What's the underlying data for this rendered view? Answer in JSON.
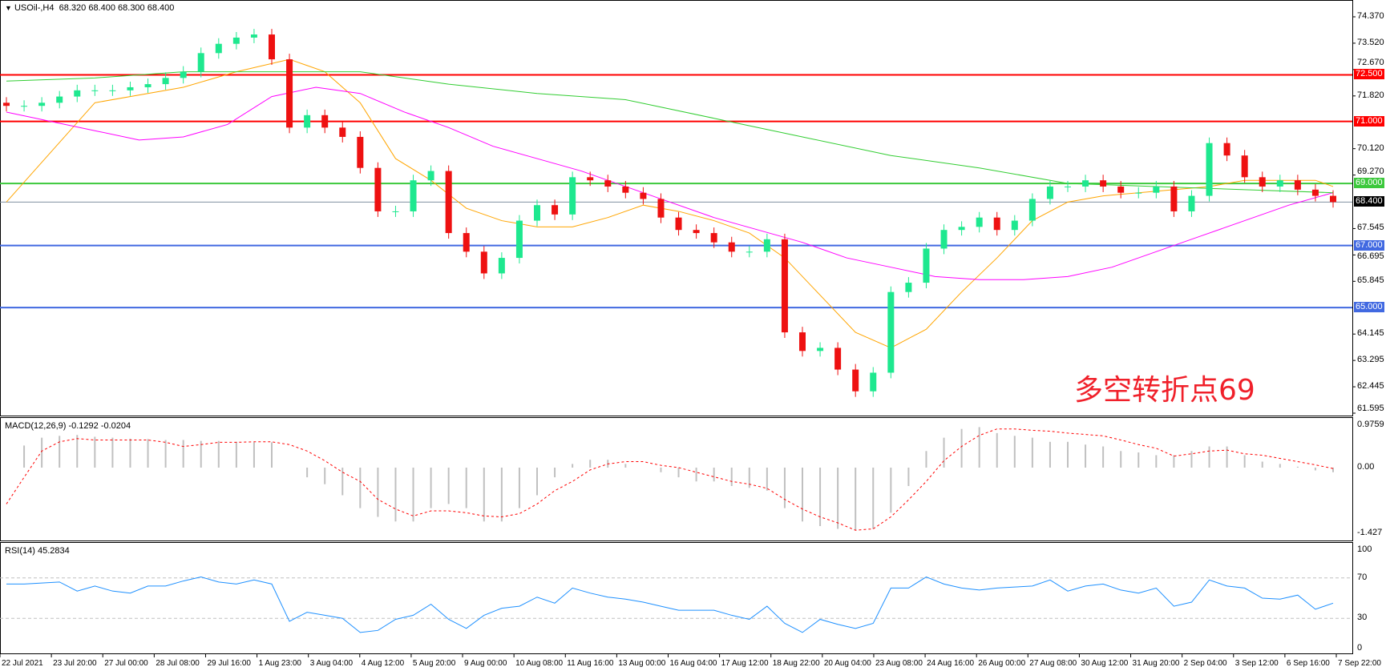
{
  "header": {
    "symbol": "USOil-,H4",
    "ohlc": "68.320 68.400 68.300 68.400",
    "arrow_icon": "triangle-down-icon"
  },
  "annotation": "多空转折点69",
  "colors": {
    "bull": "#1ee88f",
    "bear": "#ee1111",
    "ma_fast": "#ffa500",
    "ma_mid": "#ff00ff",
    "ma_slow": "#32cd32",
    "macd_hist": "#c0c0c0",
    "macd_signal": "#ff0000",
    "rsi": "#1e90ff"
  },
  "chart_data": [
    {
      "type": "candlestick",
      "title": "USOil-,H4",
      "price_axis_ticks": [
        "74.370",
        "73.520",
        "72.670",
        "71.820",
        "70.120",
        "69.270",
        "67.545",
        "66.695",
        "65.845",
        "64.145",
        "63.295",
        "62.445",
        "61.595"
      ],
      "ylim": [
        61.595,
        74.37
      ],
      "time_axis_ticks": [
        "22 Jul 2021",
        "23 Jul 20:00",
        "27 Jul 00:00",
        "28 Jul 08:00",
        "29 Jul 16:00",
        "1 Aug 23:00",
        "3 Aug 04:00",
        "4 Aug 12:00",
        "5 Aug 20:00",
        "9 Aug 00:00",
        "10 Aug 08:00",
        "11 Aug 16:00",
        "13 Aug 00:00",
        "16 Aug 04:00",
        "17 Aug 12:00",
        "18 Aug 22:00",
        "20 Aug 04:00",
        "23 Aug 08:00",
        "24 Aug 16:00",
        "26 Aug 00:00",
        "27 Aug 08:00",
        "30 Aug 12:00",
        "31 Aug 20:00",
        "2 Sep 04:00",
        "3 Sep 12:00",
        "6 Sep 16:00",
        "7 Sep 22:00"
      ],
      "closes": [
        71.5,
        71.5,
        71.6,
        71.8,
        72.0,
        72.0,
        72.0,
        72.1,
        72.2,
        72.4,
        72.6,
        73.2,
        73.5,
        73.7,
        73.8,
        73.0,
        70.8,
        71.2,
        70.8,
        70.5,
        69.5,
        68.1,
        68.1,
        69.1,
        69.4,
        67.4,
        66.8,
        66.1,
        66.6,
        67.8,
        68.3,
        68.0,
        69.2,
        69.1,
        68.9,
        68.7,
        68.5,
        67.9,
        67.5,
        67.4,
        67.1,
        66.8,
        66.8,
        67.2,
        64.2,
        63.6,
        63.7,
        63.0,
        62.3,
        62.9,
        65.5,
        65.8,
        66.9,
        67.5,
        67.6,
        67.9,
        67.5,
        67.8,
        68.5,
        68.9,
        68.9,
        69.1,
        68.9,
        68.7,
        68.7,
        68.9,
        68.1,
        68.6,
        70.3,
        69.9,
        69.2,
        68.9,
        69.1,
        68.8,
        68.6,
        68.4
      ],
      "moving_averages": [
        {
          "color": "#ffa500",
          "points": [
            [
              0,
              68.4
            ],
            [
              5,
              71.6
            ],
            [
              10,
              72.1
            ],
            [
              13,
              72.6
            ],
            [
              16,
              73.0
            ],
            [
              18,
              72.6
            ],
            [
              20,
              71.6
            ],
            [
              22,
              69.8
            ],
            [
              24,
              69.1
            ],
            [
              26,
              68.2
            ],
            [
              28,
              67.8
            ],
            [
              30,
              67.6
            ],
            [
              32,
              67.6
            ],
            [
              34,
              67.9
            ],
            [
              36,
              68.3
            ],
            [
              38,
              68.1
            ],
            [
              40,
              67.8
            ],
            [
              42,
              67.4
            ],
            [
              44,
              66.6
            ],
            [
              46,
              65.4
            ],
            [
              48,
              64.2
            ],
            [
              50,
              63.7
            ],
            [
              52,
              64.3
            ],
            [
              54,
              65.5
            ],
            [
              56,
              66.6
            ],
            [
              58,
              67.8
            ],
            [
              60,
              68.4
            ],
            [
              62,
              68.6
            ],
            [
              64,
              68.7
            ],
            [
              66,
              68.8
            ],
            [
              68,
              68.9
            ],
            [
              70,
              69.1
            ],
            [
              72,
              69.1
            ],
            [
              74,
              69.1
            ],
            [
              75,
              68.9
            ]
          ]
        },
        {
          "color": "#ff00ff",
          "points": [
            [
              0,
              71.3
            ],
            [
              5,
              70.7
            ],
            [
              7.5,
              70.4
            ],
            [
              10,
              70.5
            ],
            [
              12.5,
              70.9
            ],
            [
              15,
              71.8
            ],
            [
              17.5,
              72.1
            ],
            [
              20,
              71.9
            ],
            [
              22.5,
              71.3
            ],
            [
              25,
              70.8
            ],
            [
              27.5,
              70.2
            ],
            [
              30,
              69.8
            ],
            [
              32.5,
              69.4
            ],
            [
              35,
              68.9
            ],
            [
              37.5,
              68.4
            ],
            [
              40,
              67.9
            ],
            [
              42.5,
              67.5
            ],
            [
              45,
              67.1
            ],
            [
              47.5,
              66.6
            ],
            [
              50,
              66.3
            ],
            [
              52.5,
              66.0
            ],
            [
              55,
              65.9
            ],
            [
              57.5,
              65.9
            ],
            [
              60,
              66.0
            ],
            [
              62.5,
              66.3
            ],
            [
              65,
              66.8
            ],
            [
              67.5,
              67.3
            ],
            [
              70,
              67.8
            ],
            [
              72.5,
              68.3
            ],
            [
              75,
              68.7
            ]
          ]
        },
        {
          "color": "#32cd32",
          "points": [
            [
              0,
              72.3
            ],
            [
              5,
              72.4
            ],
            [
              10,
              72.6
            ],
            [
              15,
              72.6
            ],
            [
              20,
              72.6
            ],
            [
              25,
              72.2
            ],
            [
              30,
              71.9
            ],
            [
              35,
              71.7
            ],
            [
              40,
              71.1
            ],
            [
              45,
              70.5
            ],
            [
              50,
              69.9
            ],
            [
              55,
              69.5
            ],
            [
              60,
              69.0
            ],
            [
              65,
              68.9
            ],
            [
              70,
              68.8
            ],
            [
              75,
              68.7
            ]
          ]
        }
      ],
      "horizontal_levels": [
        {
          "price": "72.500",
          "color": "#ff0000"
        },
        {
          "price": "71.000",
          "color": "#ff0000"
        },
        {
          "price": "69.000",
          "color": "#3cc83c"
        },
        {
          "price": "68.400",
          "color": "#000000",
          "line": "#8090a0"
        },
        {
          "price": "67.000",
          "color": "#4169e1"
        },
        {
          "price": "65.000",
          "color": "#4169e1"
        }
      ]
    },
    {
      "type": "bar",
      "title": "MACD(12,26,9) -0.1292 -0.0204",
      "ylim": [
        -1.427,
        0.9759
      ],
      "axis_ticks": [
        "0.9759",
        "0.00",
        "-1.427"
      ],
      "histogram": [
        0,
        0.48,
        0.65,
        0.69,
        0.71,
        0.67,
        0.65,
        0.63,
        0.62,
        0.6,
        0.6,
        0.58,
        0.58,
        0.56,
        0.55,
        0.55,
        0,
        -0.21,
        -0.36,
        -0.6,
        -0.88,
        -1.07,
        -1.17,
        -1.17,
        -0.88,
        -0.79,
        -0.88,
        -1.17,
        -1.17,
        -0.88,
        -0.6,
        -0.21,
        0.08,
        0.17,
        0.17,
        0.08,
        0,
        -0.1,
        -0.21,
        -0.3,
        -0.3,
        -0.4,
        -0.44,
        -0.5,
        -0.88,
        -1.17,
        -1.27,
        -1.33,
        -1.36,
        -1.33,
        -0.98,
        -0.4,
        0.36,
        0.65,
        0.84,
        0.88,
        0.75,
        0.69,
        0.65,
        0.56,
        0.56,
        0.5,
        0.46,
        0.36,
        0.33,
        0.27,
        0.27,
        0.36,
        0.46,
        0.46,
        0.27,
        0.13,
        0.08,
        0.02,
        -0.06,
        -0.1
      ],
      "signal": [
        -0.79,
        -0.21,
        0.36,
        0.56,
        0.63,
        0.6,
        0.6,
        0.6,
        0.6,
        0.55,
        0.46,
        0.5,
        0.55,
        0.55,
        0.56,
        0.56,
        0.5,
        0.36,
        0.15,
        -0.1,
        -0.3,
        -0.69,
        -0.9,
        -1.05,
        -0.94,
        -0.94,
        -0.98,
        -1.05,
        -1.07,
        -1.0,
        -0.79,
        -0.5,
        -0.3,
        -0.05,
        0.08,
        0.13,
        0.13,
        0.05,
        0,
        -0.1,
        -0.2,
        -0.3,
        -0.36,
        -0.45,
        -0.69,
        -0.9,
        -1.07,
        -1.2,
        -1.36,
        -1.33,
        -1.07,
        -0.7,
        -0.3,
        0.15,
        0.46,
        0.7,
        0.84,
        0.84,
        0.81,
        0.79,
        0.75,
        0.72,
        0.69,
        0.6,
        0.5,
        0.42,
        0.25,
        0.3,
        0.36,
        0.38,
        0.3,
        0.27,
        0.2,
        0.13,
        0.06,
        -0.02
      ]
    },
    {
      "type": "line",
      "title": "RSI(14) 45.2834",
      "ylim": [
        0,
        100
      ],
      "axis_ticks": [
        "100",
        "70",
        "30",
        "0"
      ],
      "levels": [
        70,
        30
      ],
      "values": [
        64,
        64,
        65,
        66,
        57,
        62,
        57,
        55,
        62,
        62,
        67,
        71,
        66,
        64,
        68,
        64,
        27,
        36,
        33,
        30,
        16,
        18,
        29,
        33,
        44,
        29,
        20,
        33,
        40,
        42,
        51,
        45,
        60,
        55,
        51,
        49,
        46,
        42,
        38,
        38,
        38,
        33,
        29,
        42,
        25,
        16,
        29,
        24,
        20,
        25,
        60,
        60,
        71,
        64,
        60,
        58,
        60,
        61,
        62,
        68,
        57,
        62,
        64,
        58,
        55,
        60,
        42,
        46,
        68,
        62,
        60,
        50,
        49,
        53,
        39,
        45
      ]
    }
  ]
}
